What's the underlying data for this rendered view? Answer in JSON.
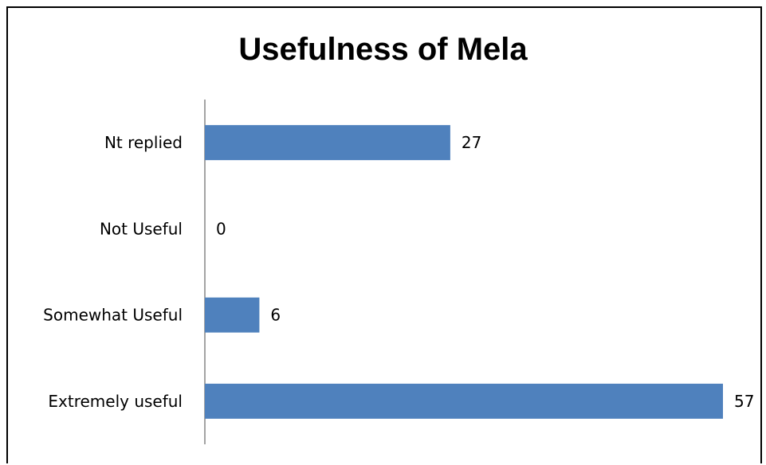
{
  "chart_data": {
    "type": "bar",
    "orientation": "horizontal",
    "title": "Usefulness of Mela",
    "categories": [
      "Nt replied",
      "Not Useful",
      "Somewhat Useful",
      "Extremely useful"
    ],
    "values": [
      27,
      0,
      6,
      57
    ],
    "xlim": [
      0,
      57
    ],
    "grid": false,
    "legend": "none",
    "bar_color": "#4F81BD",
    "data_labels": true
  }
}
